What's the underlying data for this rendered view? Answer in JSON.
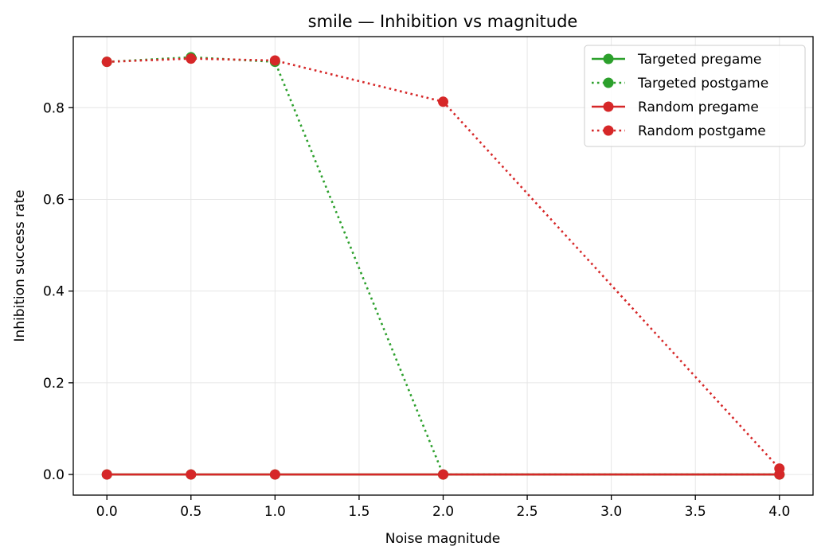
{
  "chart_data": {
    "type": "line",
    "title": "smile — Inhibition vs magnitude",
    "xlabel": "Noise magnitude",
    "ylabel": "Inhibition success rate",
    "xlim": [
      -0.2,
      4.2
    ],
    "ylim": [
      -0.045,
      0.955
    ],
    "xticks": [
      "0.0",
      "0.5",
      "1.0",
      "1.5",
      "2.0",
      "2.5",
      "3.0",
      "3.5",
      "4.0"
    ],
    "yticks": [
      "0.0",
      "0.2",
      "0.4",
      "0.6",
      "0.8"
    ],
    "grid": true,
    "legend_position": "top-right",
    "x": [
      0.0,
      0.5,
      1.0,
      2.0,
      4.0
    ],
    "series": [
      {
        "name": "Targeted pregame",
        "color": "#2ca02c",
        "linestyle": "solid",
        "marker": "circle",
        "values": [
          0.0,
          0.0,
          0.0,
          0.0,
          0.0
        ]
      },
      {
        "name": "Targeted postgame",
        "color": "#2ca02c",
        "linestyle": "dotted",
        "marker": "circle",
        "values": [
          0.9,
          0.91,
          0.9,
          0.0,
          0.0
        ]
      },
      {
        "name": "Random pregame",
        "color": "#d62728",
        "linestyle": "solid",
        "marker": "circle",
        "values": [
          0.0,
          0.0,
          0.0,
          0.0,
          0.0
        ]
      },
      {
        "name": "Random postgame",
        "color": "#d62728",
        "linestyle": "dotted",
        "marker": "circle",
        "values": [
          0.9,
          0.907,
          0.903,
          0.813,
          0.013
        ]
      }
    ]
  }
}
